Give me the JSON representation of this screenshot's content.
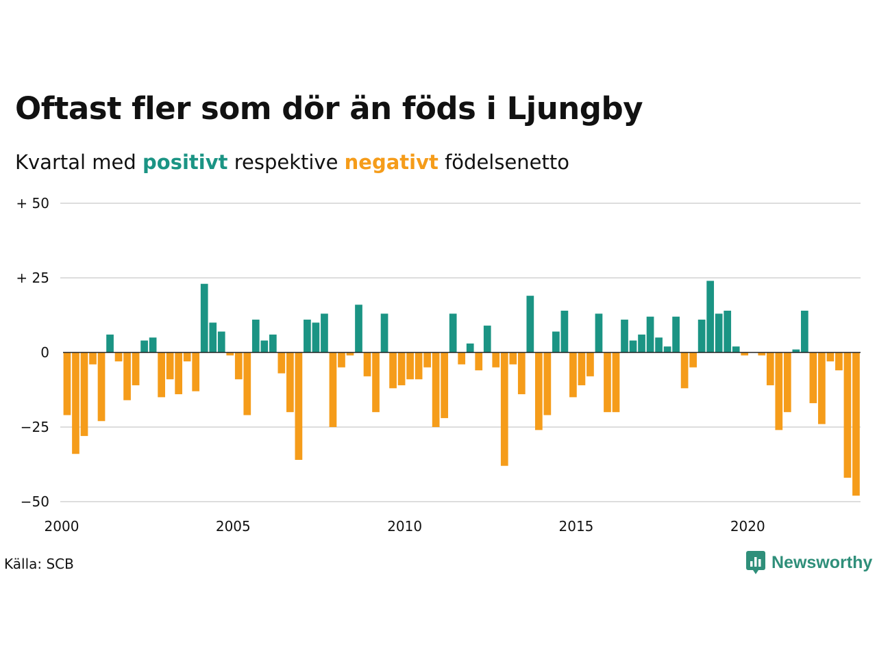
{
  "title": "Oftast fler som dör än föds i Ljungby",
  "subtitle": {
    "prefix": "Kvartal med ",
    "positive_word": "positivt",
    "middle": " respektive ",
    "negative_word": "negativt",
    "suffix": " födelsenetto"
  },
  "source": "Källa: SCB",
  "brand": "Newsworthy",
  "colors": {
    "positive": "#1b9484",
    "negative": "#f59c1a",
    "grid": "#dddddd",
    "brand": "#2f8f7a"
  },
  "chart_data": {
    "type": "bar",
    "x_start": "2000 Q1",
    "x_ticks": [
      2000,
      2005,
      2010,
      2015,
      2020
    ],
    "y_ticks": [
      50,
      25,
      0,
      -25,
      -50
    ],
    "y_tick_labels": [
      "+ 50",
      "+ 25",
      "0",
      "−25",
      "−50"
    ],
    "ylim": [
      -50,
      50
    ],
    "grid": true,
    "values": [
      -21,
      -34,
      -28,
      -4,
      -23,
      6,
      -3,
      -16,
      -11,
      4,
      5,
      -15,
      -9,
      -14,
      -3,
      -13,
      23,
      10,
      7,
      -1,
      -9,
      -21,
      11,
      4,
      6,
      -7,
      -20,
      -36,
      11,
      10,
      13,
      -25,
      -5,
      -1,
      16,
      -8,
      -20,
      13,
      -12,
      -11,
      -9,
      -9,
      -5,
      -25,
      -22,
      13,
      -4,
      3,
      -6,
      9,
      -5,
      -38,
      -4,
      -14,
      19,
      -26,
      -21,
      7,
      14,
      -15,
      -11,
      -8,
      13,
      -20,
      -20,
      11,
      4,
      6,
      12,
      5,
      2,
      12,
      -12,
      -5,
      11,
      24,
      13,
      14,
      2,
      -1,
      0,
      -1,
      -11,
      -26,
      -20,
      1,
      14,
      -17,
      -24,
      -3,
      -6,
      -42,
      -48
    ]
  }
}
